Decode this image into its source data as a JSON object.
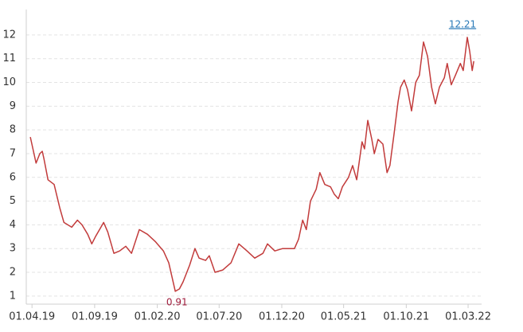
{
  "chart_data": {
    "type": "line",
    "x": [
      "2019-03-28",
      "2019-04-11",
      "2019-04-20",
      "2019-04-26",
      "2019-04-30",
      "2019-05-10",
      "2019-05-25",
      "2019-06-08",
      "2019-06-18",
      "2019-07-07",
      "2019-07-21",
      "2019-08-01",
      "2019-08-15",
      "2019-08-25",
      "2019-09-03",
      "2019-09-23",
      "2019-10-03",
      "2019-10-18",
      "2019-11-01",
      "2019-11-16",
      "2019-11-30",
      "2019-12-19",
      "2020-01-08",
      "2020-01-27",
      "2020-02-16",
      "2020-02-29",
      "2020-03-16",
      "2020-03-26",
      "2020-04-04",
      "2020-04-20",
      "2020-05-03",
      "2020-05-13",
      "2020-05-29",
      "2020-06-07",
      "2020-06-21",
      "2020-07-10",
      "2020-07-30",
      "2020-08-18",
      "2020-09-07",
      "2020-09-26",
      "2020-10-16",
      "2020-10-27",
      "2020-11-14",
      "2020-12-03",
      "2020-12-23",
      "2021-01-01",
      "2021-01-11",
      "2021-01-21",
      "2021-01-30",
      "2021-02-09",
      "2021-02-23",
      "2021-03-04",
      "2021-03-16",
      "2021-03-30",
      "2021-04-08",
      "2021-04-18",
      "2021-04-28",
      "2021-05-13",
      "2021-05-23",
      "2021-06-02",
      "2021-06-15",
      "2021-06-21",
      "2021-06-29",
      "2021-07-09",
      "2021-07-15",
      "2021-07-24",
      "2021-08-05",
      "2021-08-15",
      "2021-08-22",
      "2021-09-01",
      "2021-09-11",
      "2021-09-17",
      "2021-09-26",
      "2021-10-04",
      "2021-10-14",
      "2021-10-24",
      "2021-11-02",
      "2021-11-12",
      "2021-11-22",
      "2021-12-02",
      "2021-12-11",
      "2021-12-21",
      "2022-01-02",
      "2022-01-09",
      "2022-01-19",
      "2022-01-29",
      "2022-02-10",
      "2022-02-17",
      "2022-02-27",
      "2022-03-05",
      "2022-03-11",
      "2022-03-15"
    ],
    "series": [
      {
        "color": "#c23b3b",
        "values": [
          7.7,
          6.6,
          7.0,
          7.1,
          6.8,
          5.9,
          5.7,
          4.7,
          4.1,
          3.9,
          4.2,
          4.0,
          3.6,
          3.2,
          3.5,
          4.1,
          3.7,
          2.8,
          2.9,
          3.1,
          2.8,
          3.8,
          3.6,
          3.3,
          2.9,
          2.4,
          1.2,
          1.3,
          1.6,
          2.3,
          3.0,
          2.6,
          2.5,
          2.7,
          2.0,
          2.1,
          2.4,
          3.2,
          2.9,
          2.6,
          2.8,
          3.2,
          2.9,
          3.0,
          3.0,
          3.0,
          3.4,
          4.2,
          3.8,
          5.0,
          5.5,
          6.2,
          5.7,
          5.6,
          5.3,
          5.1,
          5.6,
          6.0,
          6.5,
          5.9,
          7.5,
          7.2,
          8.4,
          7.6,
          7.0,
          7.6,
          7.4,
          6.2,
          6.5,
          7.8,
          9.2,
          9.8,
          10.1,
          9.7,
          8.8,
          10.0,
          10.3,
          11.7,
          11.1,
          9.8,
          9.1,
          9.8,
          10.2,
          10.8,
          9.9,
          10.3,
          10.8,
          10.5,
          11.9,
          11.3,
          10.5,
          10.9
        ]
      }
    ],
    "max_label": "12.21",
    "min_label": "0.91",
    "xlim": [
      "2019-03-18",
      "2022-04-03"
    ],
    "xticks": [
      {
        "value": "2019-04-01",
        "label": "01.04.19"
      },
      {
        "value": "2019-09-01",
        "label": "01.09.19"
      },
      {
        "value": "2020-02-01",
        "label": "01.02.20"
      },
      {
        "value": "2020-07-01",
        "label": "01.07.20"
      },
      {
        "value": "2020-12-01",
        "label": "01.12.20"
      },
      {
        "value": "2021-05-01",
        "label": "01.05.21"
      },
      {
        "value": "2021-10-01",
        "label": "01.10.21"
      },
      {
        "value": "2022-03-01",
        "label": "01.03.22"
      }
    ],
    "ylim": [
      0.66,
      13.07
    ],
    "yticks": [
      1,
      2,
      3,
      4,
      5,
      6,
      7,
      8,
      9,
      10,
      11,
      12
    ],
    "grid": true
  }
}
